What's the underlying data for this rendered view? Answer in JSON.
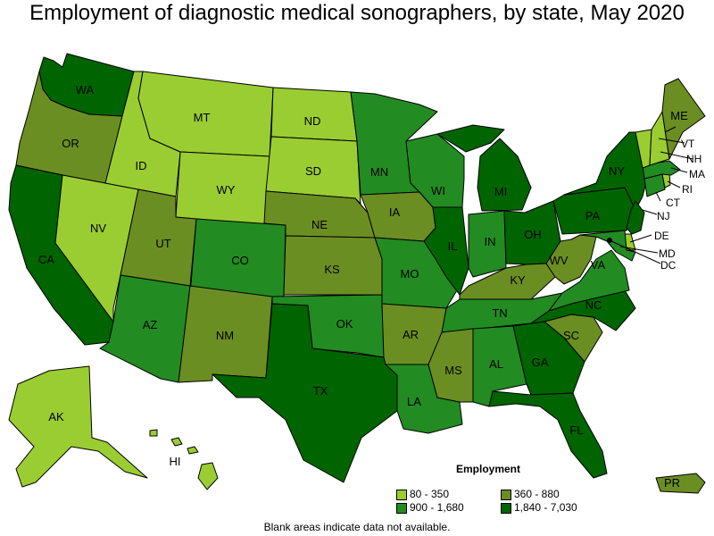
{
  "title": "Employment of diagnostic medical sonographers, by state, May 2020",
  "legend": {
    "title": "Employment",
    "bins": [
      {
        "label": "80 - 350",
        "color": "#9acd32"
      },
      {
        "label": "360 - 880",
        "color": "#6b8e23"
      },
      {
        "label": "900 - 1,680",
        "color": "#228b22"
      },
      {
        "label": "1,840 - 7,030",
        "color": "#006400"
      }
    ]
  },
  "note": "Blank areas indicate data not available.",
  "states": {
    "WA": 3,
    "OR": 1,
    "CA": 3,
    "NV": 0,
    "ID": 0,
    "MT": 0,
    "WY": 0,
    "UT": 1,
    "AZ": 2,
    "CO": 2,
    "NM": 1,
    "ND": 0,
    "SD": 0,
    "NE": 1,
    "KS": 1,
    "OK": 2,
    "TX": 3,
    "MN": 2,
    "IA": 1,
    "MO": 2,
    "AR": 1,
    "LA": 2,
    "WI": 2,
    "IL": 3,
    "MI": 3,
    "IN": 2,
    "OH": 3,
    "KY": 1,
    "TN": 2,
    "MS": 1,
    "AL": 2,
    "GA": 3,
    "FL": 3,
    "SC": 1,
    "NC": 3,
    "VA": 2,
    "WV": 1,
    "PA": 3,
    "NY": 3,
    "ME": 1,
    "VT": 0,
    "NH": 0,
    "MA": 2,
    "CT": 2,
    "RI": 0,
    "NJ": 3,
    "DE": 0,
    "MD": 2,
    "DC": 0,
    "AK": 0,
    "HI": 0,
    "PR": 1
  },
  "labels": {
    "WA": "WA",
    "OR": "OR",
    "CA": "CA",
    "NV": "NV",
    "ID": "ID",
    "MT": "MT",
    "WY": "WY",
    "UT": "UT",
    "AZ": "AZ",
    "CO": "CO",
    "NM": "NM",
    "ND": "ND",
    "SD": "SD",
    "NE": "NE",
    "KS": "KS",
    "OK": "OK",
    "TX": "TX",
    "MN": "MN",
    "IA": "IA",
    "MO": "MO",
    "AR": "AR",
    "LA": "LA",
    "WI": "WI",
    "IL": "IL",
    "MI": "MI",
    "IN": "IN",
    "OH": "OH",
    "KY": "KY",
    "TN": "TN",
    "MS": "MS",
    "AL": "AL",
    "GA": "GA",
    "FL": "FL",
    "SC": "SC",
    "NC": "NC",
    "VA": "VA",
    "WV": "WV",
    "PA": "PA",
    "NY": "NY",
    "ME": "ME",
    "VT": "VT",
    "NH": "NH",
    "MA": "MA",
    "CT": "CT",
    "RI": "RI",
    "NJ": "NJ",
    "DE": "DE",
    "MD": "MD",
    "DC": "DC",
    "AK": "AK",
    "HI": "HI",
    "PR": "PR"
  }
}
